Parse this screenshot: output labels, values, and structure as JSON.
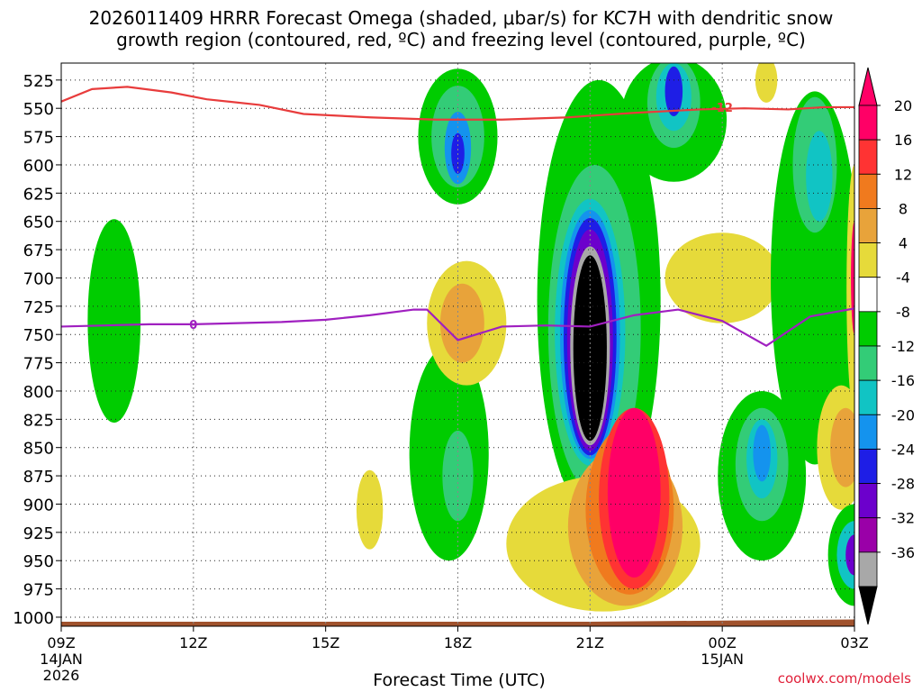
{
  "chart_data": {
    "type": "heatmap",
    "title_line1": "2026011409 HRRR Forecast Omega (shaded, μbar/s) for KC7H with dendritic snow",
    "title_line2": "growth region (contoured, red, ºC) and freezing level (contoured, purple, ºC)",
    "xlabel": "Forecast Time (UTC)",
    "credit": "coolwx.com/models",
    "x_ticks": [
      {
        "hour": 0,
        "label": "09Z",
        "sub1": "14JAN",
        "sub2": "2026"
      },
      {
        "hour": 3,
        "label": "12Z",
        "sub1": "",
        "sub2": ""
      },
      {
        "hour": 6,
        "label": "15Z",
        "sub1": "",
        "sub2": ""
      },
      {
        "hour": 9,
        "label": "18Z",
        "sub1": "",
        "sub2": ""
      },
      {
        "hour": 12,
        "label": "21Z",
        "sub1": "",
        "sub2": ""
      },
      {
        "hour": 15,
        "label": "00Z",
        "sub1": "15JAN",
        "sub2": ""
      },
      {
        "hour": 18,
        "label": "03Z",
        "sub1": "",
        "sub2": ""
      }
    ],
    "xlim": [
      0,
      18
    ],
    "y_ticks": [
      525,
      550,
      575,
      600,
      625,
      650,
      675,
      700,
      725,
      750,
      775,
      800,
      825,
      850,
      875,
      900,
      925,
      950,
      975,
      1000
    ],
    "ylim": [
      510,
      1008
    ],
    "colorbar": {
      "labels": [
        "20",
        "16",
        "12",
        "8",
        "4",
        "-4",
        "-8",
        "-12",
        "-16",
        "-20",
        "-24",
        "-28",
        "-32",
        "-36"
      ],
      "colors": [
        "#ff0066",
        "#ff3333",
        "#f07a1e",
        "#e8a33a",
        "#e6da3a",
        "#ffffff",
        "#00cc00",
        "#33cc77",
        "#11c4c4",
        "#1493ee",
        "#1e1ee6",
        "#6c00cc",
        "#9a00a8",
        "#a8a8a8",
        "#000000"
      ],
      "tips": {
        "top": "#ff0066",
        "bottom": "#000000"
      }
    },
    "series": [
      {
        "name": "dendritic snow growth region",
        "color": "#e83c3c",
        "value_label": "-12",
        "label_at": {
          "hour": 15,
          "pressure": 549
        },
        "points": [
          [
            0,
            544
          ],
          [
            0.7,
            533
          ],
          [
            1.5,
            531
          ],
          [
            2.5,
            536
          ],
          [
            3.3,
            542
          ],
          [
            4.5,
            547
          ],
          [
            5.5,
            555
          ],
          [
            7,
            558
          ],
          [
            8.5,
            560
          ],
          [
            10,
            560
          ],
          [
            11.5,
            558
          ],
          [
            13,
            554
          ],
          [
            14.5,
            551
          ],
          [
            15.5,
            550
          ],
          [
            16.5,
            551
          ],
          [
            17.3,
            549
          ],
          [
            18,
            549
          ]
        ]
      },
      {
        "name": "freezing level",
        "color": "#a020c0",
        "value_label": "0",
        "label_at": {
          "hour": 3,
          "pressure": 741
        },
        "points": [
          [
            0,
            743
          ],
          [
            1,
            742
          ],
          [
            2,
            741
          ],
          [
            3,
            741
          ],
          [
            4,
            740
          ],
          [
            5,
            739
          ],
          [
            6,
            737
          ],
          [
            7,
            733
          ],
          [
            8,
            728
          ],
          [
            8.3,
            728
          ],
          [
            9,
            755
          ],
          [
            10,
            743
          ],
          [
            11,
            742
          ],
          [
            12,
            743
          ],
          [
            13,
            733
          ],
          [
            14,
            728
          ],
          [
            15,
            738
          ],
          [
            16,
            760
          ],
          [
            17,
            734
          ],
          [
            18,
            727
          ]
        ]
      }
    ],
    "shaded_regions": [
      {
        "value": -8,
        "color": "#00cc00",
        "cx": 1.2,
        "cy": 738,
        "rx": 0.6,
        "ry": 90
      },
      {
        "value": -8,
        "color": "#00cc00",
        "cx": 9.0,
        "cy": 575,
        "rx": 0.9,
        "ry": 60
      },
      {
        "value": -12,
        "color": "#33cc77",
        "cx": 9.0,
        "cy": 575,
        "rx": 0.6,
        "ry": 45
      },
      {
        "value": -20,
        "color": "#1493ee",
        "cx": 9.0,
        "cy": 585,
        "rx": 0.3,
        "ry": 32
      },
      {
        "value": -24,
        "color": "#1e1ee6",
        "cx": 9.0,
        "cy": 590,
        "rx": 0.15,
        "ry": 18
      },
      {
        "value": -8,
        "color": "#00cc00",
        "cx": 8.8,
        "cy": 855,
        "rx": 0.9,
        "ry": 95
      },
      {
        "value": -12,
        "color": "#33cc77",
        "cx": 9.0,
        "cy": 875,
        "rx": 0.35,
        "ry": 40
      },
      {
        "value": 4,
        "color": "#e6da3a",
        "cx": 9.2,
        "cy": 740,
        "rx": 0.9,
        "ry": 55
      },
      {
        "value": 8,
        "color": "#e8a33a",
        "cx": 9.1,
        "cy": 740,
        "rx": 0.5,
        "ry": 35
      },
      {
        "value": 4,
        "color": "#e6da3a",
        "cx": 7.0,
        "cy": 905,
        "rx": 0.3,
        "ry": 35
      },
      {
        "value": -8,
        "color": "#00cc00",
        "cx": 12.2,
        "cy": 720,
        "rx": 1.4,
        "ry": 195
      },
      {
        "value": -12,
        "color": "#33cc77",
        "cx": 12.1,
        "cy": 745,
        "rx": 1.05,
        "ry": 145
      },
      {
        "value": -16,
        "color": "#11c4c4",
        "cx": 12.0,
        "cy": 748,
        "rx": 0.8,
        "ry": 118
      },
      {
        "value": -20,
        "color": "#1493ee",
        "cx": 12.0,
        "cy": 750,
        "rx": 0.68,
        "ry": 110
      },
      {
        "value": -24,
        "color": "#1e1ee6",
        "cx": 12.0,
        "cy": 752,
        "rx": 0.6,
        "ry": 105
      },
      {
        "value": -28,
        "color": "#6c00cc",
        "cx": 12.0,
        "cy": 755,
        "rx": 0.52,
        "ry": 98
      },
      {
        "value": -32,
        "color": "#a8a8a8",
        "cx": 12.0,
        "cy": 760,
        "rx": 0.45,
        "ry": 88
      },
      {
        "value": -36,
        "color": "#000000",
        "cx": 12.0,
        "cy": 762,
        "rx": 0.38,
        "ry": 82
      },
      {
        "value": 4,
        "color": "#e6da3a",
        "cx": 12.3,
        "cy": 935,
        "rx": 2.2,
        "ry": 60
      },
      {
        "value": 8,
        "color": "#e8a33a",
        "cx": 12.8,
        "cy": 920,
        "rx": 1.3,
        "ry": 70
      },
      {
        "value": 12,
        "color": "#f07a1e",
        "cx": 12.9,
        "cy": 905,
        "rx": 1.0,
        "ry": 75
      },
      {
        "value": 16,
        "color": "#ff3333",
        "cx": 13.0,
        "cy": 895,
        "rx": 0.8,
        "ry": 80
      },
      {
        "value": 20,
        "color": "#ff0066",
        "cx": 13.0,
        "cy": 890,
        "rx": 0.6,
        "ry": 75
      },
      {
        "value": -8,
        "color": "#00cc00",
        "cx": 13.9,
        "cy": 560,
        "rx": 1.2,
        "ry": 55
      },
      {
        "value": -12,
        "color": "#33cc77",
        "cx": 13.9,
        "cy": 545,
        "rx": 0.6,
        "ry": 40
      },
      {
        "value": -16,
        "color": "#11c4c4",
        "cx": 13.9,
        "cy": 540,
        "rx": 0.4,
        "ry": 30
      },
      {
        "value": -24,
        "color": "#1e1ee6",
        "cx": 13.9,
        "cy": 535,
        "rx": 0.2,
        "ry": 22
      },
      {
        "value": 4,
        "color": "#e6da3a",
        "cx": 15.0,
        "cy": 700,
        "rx": 1.3,
        "ry": 40
      },
      {
        "value": 4,
        "color": "#e6da3a",
        "cx": 16.0,
        "cy": 525,
        "rx": 0.25,
        "ry": 20
      },
      {
        "value": -8,
        "color": "#00cc00",
        "cx": 17.1,
        "cy": 700,
        "rx": 1.0,
        "ry": 165
      },
      {
        "value": -8,
        "color": "#00cc00",
        "cx": 15.9,
        "cy": 875,
        "rx": 1.0,
        "ry": 75
      },
      {
        "value": -12,
        "color": "#33cc77",
        "cx": 15.9,
        "cy": 865,
        "rx": 0.6,
        "ry": 50
      },
      {
        "value": -16,
        "color": "#11c4c4",
        "cx": 15.9,
        "cy": 860,
        "rx": 0.35,
        "ry": 35
      },
      {
        "value": -20,
        "color": "#1493ee",
        "cx": 15.9,
        "cy": 855,
        "rx": 0.2,
        "ry": 25
      },
      {
        "value": -12,
        "color": "#33cc77",
        "cx": 17.1,
        "cy": 600,
        "rx": 0.5,
        "ry": 60
      },
      {
        "value": -16,
        "color": "#11c4c4",
        "cx": 17.2,
        "cy": 610,
        "rx": 0.3,
        "ry": 40
      },
      {
        "value": 4,
        "color": "#e6da3a",
        "cx": 17.7,
        "cy": 850,
        "rx": 0.55,
        "ry": 55
      },
      {
        "value": 8,
        "color": "#e8a33a",
        "cx": 17.8,
        "cy": 850,
        "rx": 0.35,
        "ry": 35
      },
      {
        "value": 4,
        "color": "#e6da3a",
        "cx": 18.0,
        "cy": 710,
        "rx": 0.18,
        "ry": 110
      },
      {
        "value": 20,
        "color": "#ff0066",
        "cx": 18.0,
        "cy": 700,
        "rx": 0.08,
        "ry": 50
      },
      {
        "value": -8,
        "color": "#00cc00",
        "cx": 18.0,
        "cy": 945,
        "rx": 0.6,
        "ry": 45
      },
      {
        "value": -16,
        "color": "#11c4c4",
        "cx": 18.0,
        "cy": 945,
        "rx": 0.4,
        "ry": 30
      },
      {
        "value": -28,
        "color": "#6c00cc",
        "cx": 18.0,
        "cy": 945,
        "rx": 0.2,
        "ry": 18
      }
    ],
    "terrain": {
      "color": "#a0522d",
      "surface_pressure": [
        [
          0,
          1004
        ],
        [
          6,
          1004
        ],
        [
          9,
          1004
        ],
        [
          12,
          1004
        ],
        [
          15,
          1003
        ],
        [
          18,
          1002
        ]
      ]
    }
  }
}
